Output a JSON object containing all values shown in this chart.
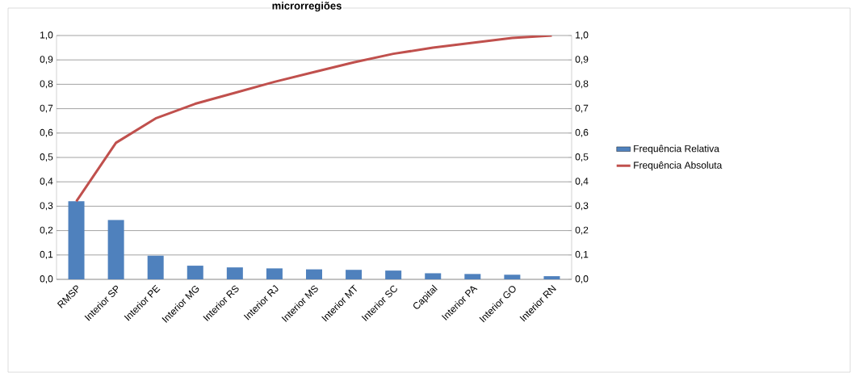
{
  "chart_data": {
    "type": "bar",
    "title": "microrregiões",
    "categories": [
      "RMSP",
      "Interior SP",
      "Interior PE",
      "Interior MG",
      "Interior RS",
      "Interior RJ",
      "Interior MS",
      "Interior MT",
      "Interior SC",
      "Capital",
      "Interior PA",
      "Interior GO",
      "Interior RN"
    ],
    "series": [
      {
        "name": "Frequência Relativa",
        "color": "#4f81bd",
        "values": [
          0.32,
          0.243,
          0.097,
          0.056,
          0.049,
          0.045,
          0.041,
          0.039,
          0.036,
          0.025,
          0.022,
          0.019,
          0.013
        ]
      },
      {
        "name": "Frequência Absoluta",
        "type": "line",
        "axis": "y2",
        "color": "#c0504d",
        "values": [
          0.32,
          0.56,
          0.66,
          0.72,
          0.765,
          0.81,
          0.85,
          0.89,
          0.925,
          0.95,
          0.97,
          0.99,
          1.0
        ]
      }
    ],
    "ylim": [
      0,
      1
    ],
    "yticks": [
      {
        "value": 0,
        "label": "0,0"
      },
      {
        "value": 0.1,
        "label": "0,1"
      },
      {
        "value": 0.2,
        "label": "0,2"
      },
      {
        "value": 0.3,
        "label": "0,3"
      },
      {
        "value": 0.4,
        "label": "0,4"
      },
      {
        "value": 0.5,
        "label": "0,5"
      },
      {
        "value": 0.6,
        "label": "0,6"
      },
      {
        "value": 0.7,
        "label": "0,7"
      },
      {
        "value": 0.8,
        "label": "0,8"
      },
      {
        "value": 0.9,
        "label": "0,9"
      },
      {
        "value": 1,
        "label": "1,0"
      }
    ],
    "y2lim": [
      0,
      1
    ],
    "y2ticks": [
      {
        "value": 0,
        "label": "0,0"
      },
      {
        "value": 0.1,
        "label": "0,1"
      },
      {
        "value": 0.2,
        "label": "0,2"
      },
      {
        "value": 0.3,
        "label": "0,3"
      },
      {
        "value": 0.4,
        "label": "0,4"
      },
      {
        "value": 0.5,
        "label": "0,5"
      },
      {
        "value": 0.6,
        "label": "0,6"
      },
      {
        "value": 0.7,
        "label": "0,7"
      },
      {
        "value": 0.8,
        "label": "0,8"
      },
      {
        "value": 0.9,
        "label": "0,9"
      },
      {
        "value": 1,
        "label": "1,0"
      }
    ],
    "grid": "y",
    "legend": "right",
    "marker": "none",
    "line_style": "solid"
  }
}
